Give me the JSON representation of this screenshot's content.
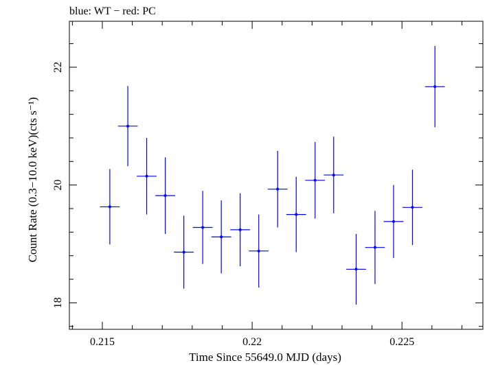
{
  "chart_data": {
    "type": "scatter",
    "title": "blue: WT − red: PC",
    "xlabel": "Time Since 55649.0 MJD (days)",
    "ylabel": "Count Rate (0.3−10.0 keV)(cts s⁻¹)",
    "xlim": [
      0.2139,
      0.2277
    ],
    "ylim": [
      17.55,
      22.78
    ],
    "x_ticks": [
      0.215,
      0.22,
      0.225
    ],
    "x_tick_labels": [
      "0.215",
      "0.22",
      "0.225"
    ],
    "y_ticks": [
      18,
      20,
      22
    ],
    "y_tick_labels": [
      "18",
      "20",
      "22"
    ],
    "grid": false,
    "series": [
      {
        "color": "#0000ff",
        "points": [
          {
            "x": 0.21525,
            "xerr": 0.00033,
            "y": 19.63,
            "yerr": 0.64
          },
          {
            "x": 0.21585,
            "xerr": 0.00033,
            "y": 21.0,
            "yerr": 0.68
          },
          {
            "x": 0.21648,
            "xerr": 0.00033,
            "y": 20.15,
            "yerr": 0.65
          },
          {
            "x": 0.2171,
            "xerr": 0.00033,
            "y": 19.82,
            "yerr": 0.65
          },
          {
            "x": 0.21772,
            "xerr": 0.00033,
            "y": 18.86,
            "yerr": 0.62
          },
          {
            "x": 0.21835,
            "xerr": 0.00033,
            "y": 19.28,
            "yerr": 0.62
          },
          {
            "x": 0.21897,
            "xerr": 0.00033,
            "y": 19.12,
            "yerr": 0.62
          },
          {
            "x": 0.2196,
            "xerr": 0.00033,
            "y": 19.24,
            "yerr": 0.62
          },
          {
            "x": 0.22022,
            "xerr": 0.00033,
            "y": 18.88,
            "yerr": 0.62
          },
          {
            "x": 0.22085,
            "xerr": 0.00033,
            "y": 19.93,
            "yerr": 0.65
          },
          {
            "x": 0.22147,
            "xerr": 0.00033,
            "y": 19.5,
            "yerr": 0.64
          },
          {
            "x": 0.2221,
            "xerr": 0.00033,
            "y": 20.08,
            "yerr": 0.65
          },
          {
            "x": 0.22272,
            "xerr": 0.00033,
            "y": 20.17,
            "yerr": 0.65
          },
          {
            "x": 0.22347,
            "xerr": 0.00033,
            "y": 18.57,
            "yerr": 0.6
          },
          {
            "x": 0.2241,
            "xerr": 0.00033,
            "y": 18.94,
            "yerr": 0.62
          },
          {
            "x": 0.22472,
            "xerr": 0.00033,
            "y": 19.38,
            "yerr": 0.62
          },
          {
            "x": 0.22535,
            "xerr": 0.00033,
            "y": 19.62,
            "yerr": 0.64
          },
          {
            "x": 0.2261,
            "xerr": 0.00033,
            "y": 21.67,
            "yerr": 0.69
          }
        ]
      }
    ]
  }
}
